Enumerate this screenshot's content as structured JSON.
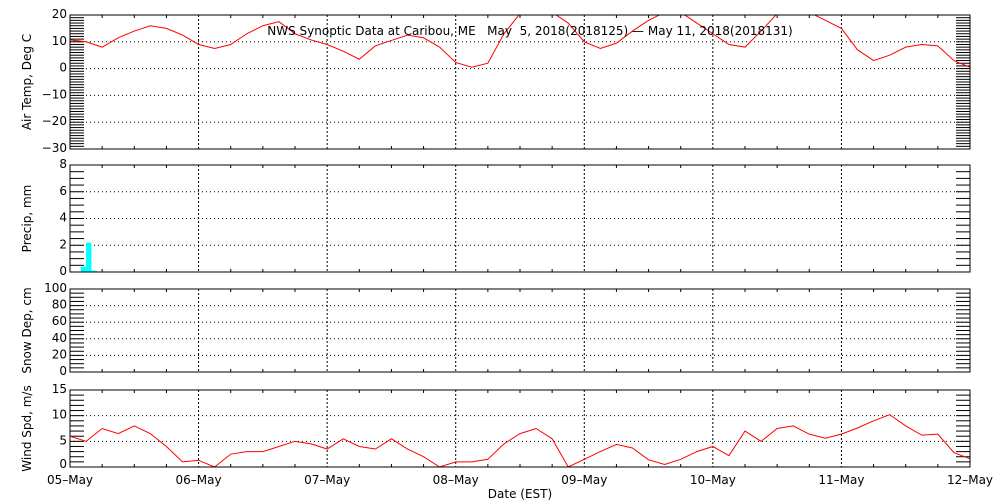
{
  "chart_data": {
    "title": "NWS Synoptic Data at Caribou, ME   May  5, 2018(2018125) — May 11, 2018(2018131)",
    "xlabel": "Date (EST)",
    "x_tick_labels": [
      "05-May",
      "06-May",
      "07-May",
      "08-May",
      "09-May",
      "10-May",
      "11-May",
      "12-May"
    ],
    "x_range": [
      "05-May 00:00",
      "12-May 00:00"
    ],
    "times": [
      "05-May 00:00",
      "05-May 03:00",
      "05-May 06:00",
      "05-May 09:00",
      "05-May 12:00",
      "05-May 15:00",
      "05-May 18:00",
      "05-May 21:00",
      "06-May 00:00",
      "06-May 03:00",
      "06-May 06:00",
      "06-May 09:00",
      "06-May 12:00",
      "06-May 15:00",
      "06-May 18:00",
      "06-May 21:00",
      "07-May 00:00",
      "07-May 03:00",
      "07-May 06:00",
      "07-May 09:00",
      "07-May 12:00",
      "07-May 15:00",
      "07-May 18:00",
      "07-May 21:00",
      "08-May 00:00",
      "08-May 03:00",
      "08-May 06:00",
      "08-May 09:00",
      "08-May 12:00",
      "08-May 15:00",
      "08-May 18:00",
      "08-May 21:00",
      "09-May 00:00",
      "09-May 03:00",
      "09-May 06:00",
      "09-May 09:00",
      "09-May 12:00",
      "09-May 15:00",
      "09-May 18:00",
      "09-May 21:00",
      "10-May 00:00",
      "10-May 03:00",
      "10-May 06:00",
      "10-May 09:00",
      "10-May 12:00",
      "10-May 15:00",
      "10-May 18:00",
      "10-May 21:00",
      "11-May 00:00",
      "11-May 03:00",
      "11-May 06:00",
      "11-May 09:00",
      "11-May 12:00",
      "11-May 15:00",
      "11-May 18:00",
      "11-May 21:00",
      "12-May 00:00"
    ],
    "grid": true,
    "panels": [
      {
        "type": "line",
        "ylabel": "Air Temp, Deg C",
        "ylim": [
          -30,
          20
        ],
        "major": 10,
        "minor": 1,
        "y_tick_labels": [
          "-30",
          "-20",
          "-10",
          "0",
          "10",
          "20"
        ],
        "color": "#ff0000",
        "values": [
          10.7,
          10,
          8,
          11.5,
          14,
          16,
          15,
          12.5,
          9,
          7.5,
          9,
          13,
          16,
          17.5,
          13,
          10.7,
          9,
          6.5,
          3.5,
          8.5,
          10.5,
          12.5,
          11.5,
          8,
          2.3,
          0.5,
          2,
          13,
          20.5,
          23,
          21,
          17,
          10,
          7.5,
          9.5,
          14,
          18,
          21,
          21,
          17,
          13,
          9,
          8,
          14,
          20.5,
          23,
          21,
          18,
          15,
          7,
          3,
          5,
          8,
          9,
          8.5,
          3,
          0.5
        ]
      },
      {
        "type": "bar",
        "ylabel": "Precip, mm",
        "ylim": [
          0,
          8
        ],
        "major": 2,
        "minor": 0.5,
        "y_tick_labels": [
          "0",
          "2",
          "4",
          "6",
          "8"
        ],
        "color": "#00ffff",
        "bars": [
          {
            "time": "05-May 02:00",
            "value": 0.4
          },
          {
            "time": "05-May 03:00",
            "value": 2.2
          },
          {
            "time": "05-May 04:00",
            "value": 0.1
          }
        ]
      },
      {
        "type": "line",
        "ylabel": "Snow Dep, cm",
        "ylim": [
          0,
          100
        ],
        "major": 20,
        "minor": 5,
        "y_tick_labels": [
          "0",
          "20",
          "40",
          "60",
          "80",
          "100"
        ],
        "color": "#ff0000",
        "values": []
      },
      {
        "type": "line",
        "ylabel": "Wind Spd, m/s",
        "ylim": [
          0,
          15
        ],
        "major": 5,
        "minor": 1,
        "y_tick_labels": [
          "0",
          "5",
          "10",
          "15"
        ],
        "color": "#ff0000",
        "values": [
          6,
          5,
          7.5,
          6.5,
          8,
          6.5,
          4,
          1,
          1.3,
          0,
          2.5,
          3,
          3,
          4,
          5,
          4.5,
          3.5,
          5.5,
          4,
          3.5,
          5.5,
          3.5,
          2,
          0,
          1,
          1,
          1.5,
          4.5,
          6.5,
          7.5,
          5.5,
          0,
          1.5,
          3,
          4.4,
          3.7,
          1.4,
          0.5,
          1.5,
          3,
          4,
          2.2,
          7,
          5,
          7.5,
          8,
          6.4,
          5.6,
          6.4,
          7.6,
          9,
          10.2,
          8,
          6.2,
          6.4,
          2.8,
          1.6
        ]
      }
    ]
  }
}
